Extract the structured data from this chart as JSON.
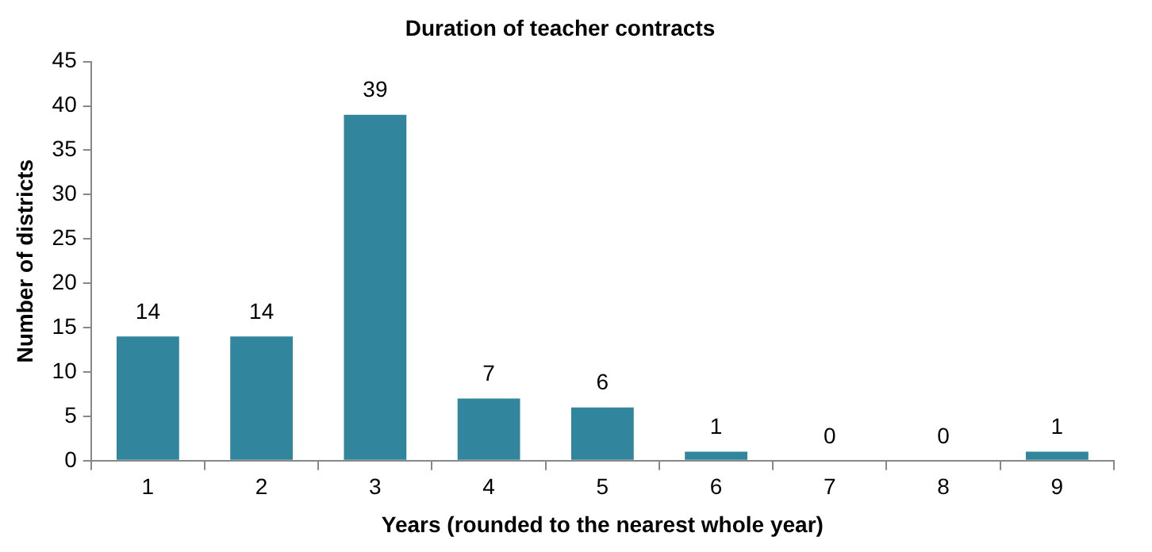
{
  "chart_data": {
    "type": "bar",
    "title": "Duration of teacher contracts",
    "xlabel": "Years (rounded to the nearest whole year)",
    "ylabel": "Number of districts",
    "categories": [
      "1",
      "2",
      "3",
      "4",
      "5",
      "6",
      "7",
      "8",
      "9"
    ],
    "values": [
      14,
      14,
      39,
      7,
      6,
      1,
      0,
      0,
      1
    ],
    "color": "#31859c",
    "ylim": [
      0,
      45
    ],
    "yticks": [
      0,
      5,
      10,
      15,
      20,
      25,
      30,
      35,
      40,
      45
    ],
    "grid": false,
    "legend": false,
    "data_labels": true
  }
}
